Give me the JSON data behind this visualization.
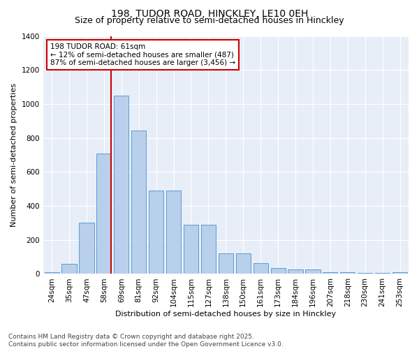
{
  "title_line1": "198, TUDOR ROAD, HINCKLEY, LE10 0EH",
  "title_line2": "Size of property relative to semi-detached houses in Hinckley",
  "xlabel": "Distribution of semi-detached houses by size in Hinckley",
  "ylabel": "Number of semi-detached properties",
  "bar_labels": [
    "24sqm",
    "35sqm",
    "47sqm",
    "58sqm",
    "69sqm",
    "81sqm",
    "92sqm",
    "104sqm",
    "115sqm",
    "127sqm",
    "138sqm",
    "150sqm",
    "161sqm",
    "173sqm",
    "184sqm",
    "196sqm",
    "207sqm",
    "218sqm",
    "230sqm",
    "241sqm",
    "253sqm"
  ],
  "bar_values": [
    10,
    60,
    300,
    710,
    1050,
    845,
    490,
    490,
    290,
    290,
    120,
    120,
    65,
    35,
    25,
    25,
    12,
    12,
    5,
    5,
    10
  ],
  "bar_color": "#b8d0eb",
  "bar_edge_color": "#5b9bd5",
  "highlight_bar_index": 3,
  "highlight_color": "#cc0000",
  "annotation_text": "198 TUDOR ROAD: 61sqm\n← 12% of semi-detached houses are smaller (487)\n87% of semi-detached houses are larger (3,456) →",
  "annotation_box_color": "#cc0000",
  "ylim": [
    0,
    1400
  ],
  "yticks": [
    0,
    200,
    400,
    600,
    800,
    1000,
    1200,
    1400
  ],
  "bg_color": "#e8eef8",
  "footer_line1": "Contains HM Land Registry data © Crown copyright and database right 2025.",
  "footer_line2": "Contains public sector information licensed under the Open Government Licence v3.0.",
  "title_fontsize": 10,
  "subtitle_fontsize": 9,
  "axis_label_fontsize": 8,
  "tick_fontsize": 7.5,
  "annotation_fontsize": 7.5,
  "footer_fontsize": 6.5,
  "font_family": "DejaVu Sans"
}
